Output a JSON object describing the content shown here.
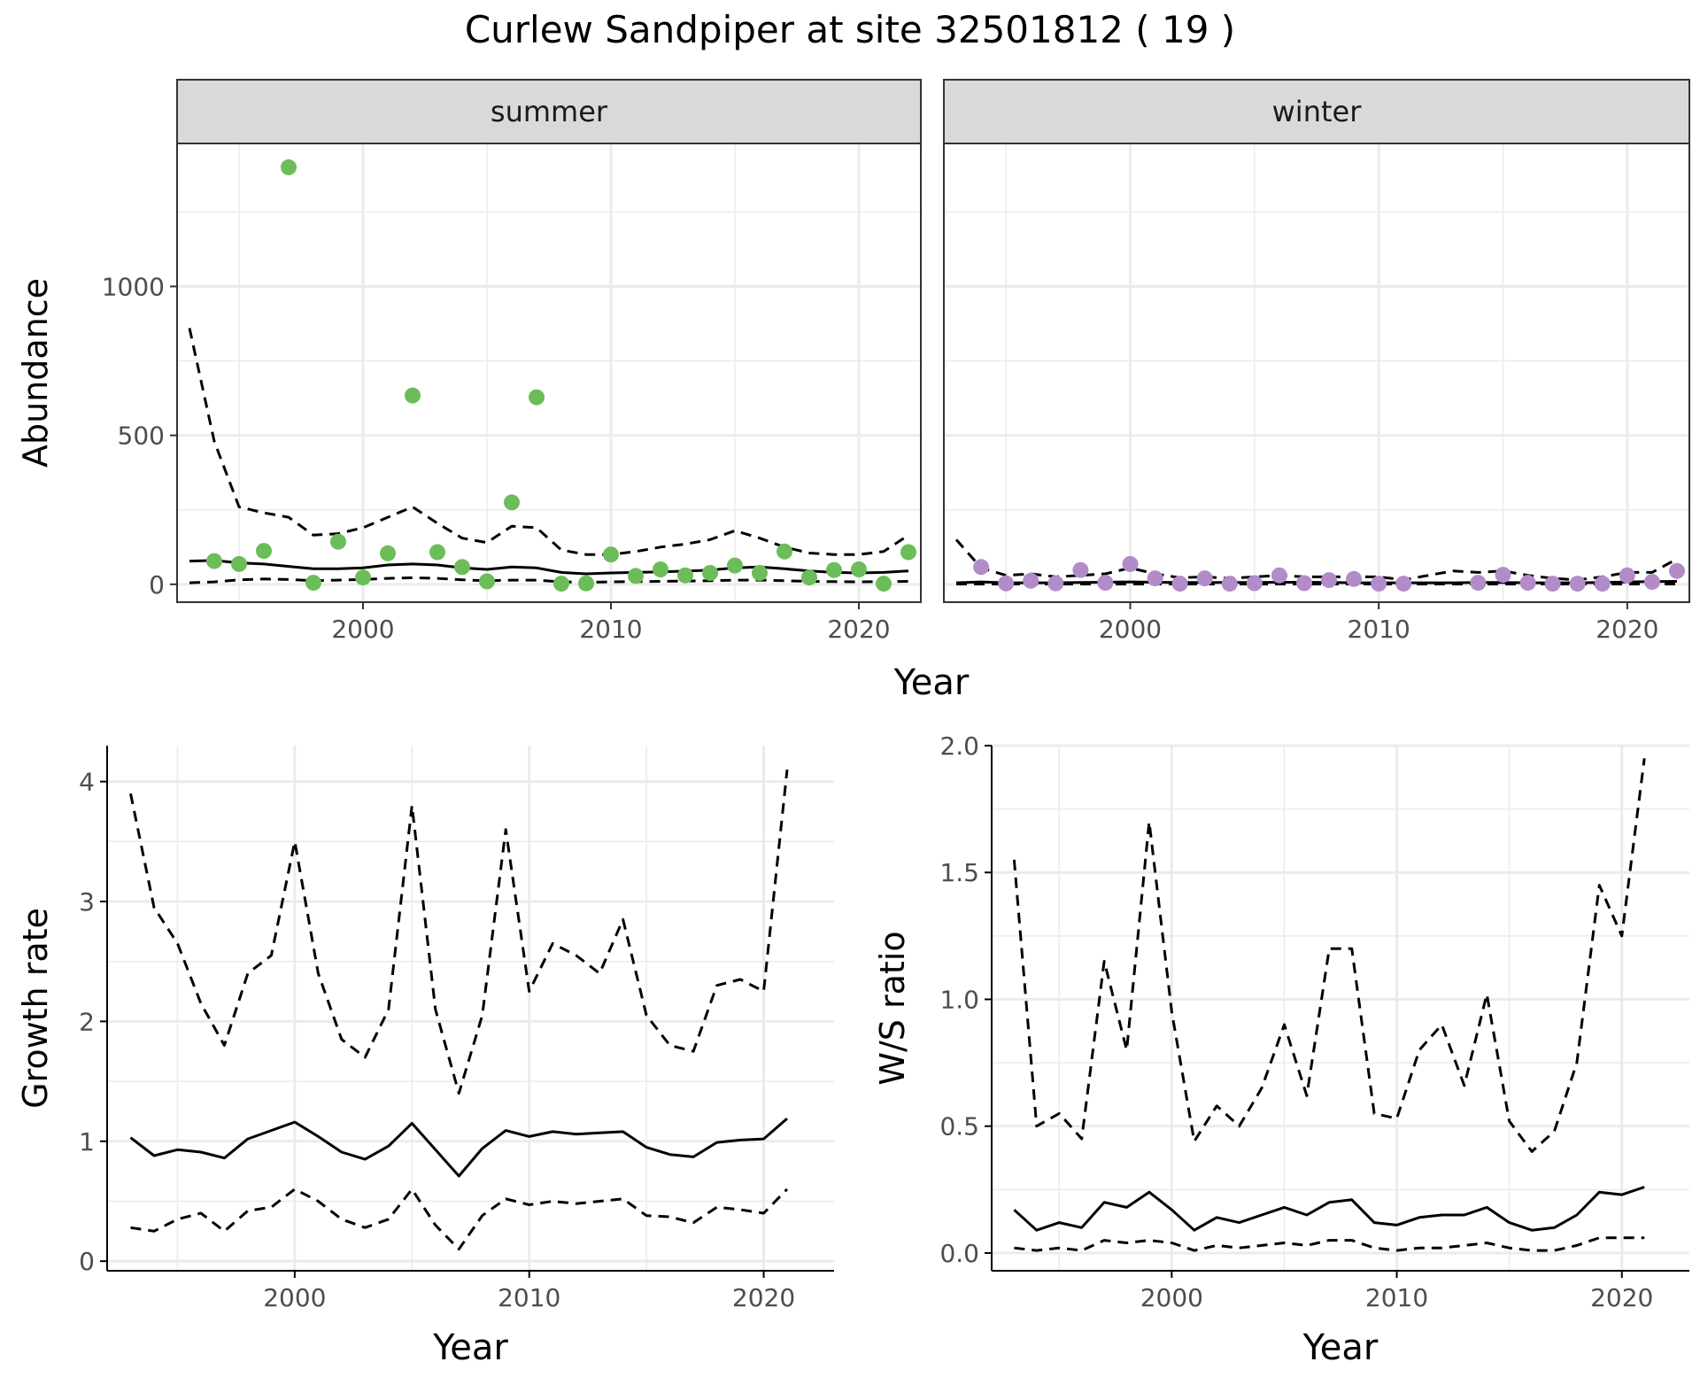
{
  "title": "Curlew Sandpiper at site 32501812 ( 19 )",
  "colors": {
    "summer_points": "#6cbd5a",
    "winter_points": "#b28cc9",
    "lines": "#000000",
    "strip_fill": "#d9d9d9",
    "grid": "#ebebeb"
  },
  "chart_data": [
    {
      "type": "line",
      "panel": "summer",
      "strip_label": "summer",
      "xlabel": "Year",
      "ylabel": "Abundance",
      "xlim": [
        1992.5,
        2022.5
      ],
      "ylim": [
        -60,
        1480
      ],
      "xticks": [
        2000,
        2010,
        2020
      ],
      "yticks": [
        0,
        500,
        1000
      ],
      "x": [
        1993,
        1994,
        1995,
        1996,
        1997,
        1998,
        1999,
        2000,
        2001,
        2002,
        2003,
        2004,
        2005,
        2006,
        2007,
        2008,
        2009,
        2010,
        2011,
        2012,
        2013,
        2014,
        2015,
        2016,
        2017,
        2018,
        2019,
        2020,
        2021,
        2022
      ],
      "series": [
        {
          "name": "fit",
          "style": "solid",
          "values": [
            78,
            80,
            72,
            68,
            60,
            52,
            52,
            55,
            65,
            68,
            65,
            55,
            50,
            58,
            55,
            40,
            35,
            38,
            40,
            42,
            44,
            48,
            55,
            58,
            52,
            45,
            40,
            38,
            40,
            45
          ]
        },
        {
          "name": "upper",
          "style": "dashed",
          "values": [
            860,
            480,
            260,
            240,
            225,
            165,
            170,
            190,
            225,
            260,
            205,
            155,
            140,
            195,
            190,
            115,
            100,
            100,
            110,
            125,
            135,
            150,
            180,
            155,
            125,
            105,
            100,
            100,
            110,
            165
          ]
        },
        {
          "name": "lower",
          "style": "dashed",
          "values": [
            5,
            8,
            15,
            18,
            16,
            12,
            14,
            16,
            20,
            22,
            20,
            15,
            12,
            14,
            14,
            8,
            7,
            8,
            9,
            10,
            11,
            12,
            14,
            14,
            12,
            10,
            9,
            8,
            9,
            10
          ]
        }
      ],
      "points": {
        "name": "observed",
        "x": [
          1994,
          1995,
          1996,
          1997,
          1998,
          1999,
          2000,
          2001,
          2002,
          2003,
          2004,
          2005,
          2006,
          2007,
          2008,
          2009,
          2010,
          2011,
          2012,
          2013,
          2014,
          2015,
          2016,
          2017,
          2018,
          2019,
          2020,
          2021,
          2022
        ],
        "values": [
          78,
          68,
          112,
          1400,
          5,
          143,
          23,
          104,
          634,
          108,
          58,
          10,
          275,
          628,
          2,
          3,
          100,
          28,
          50,
          30,
          38,
          63,
          38,
          110,
          23,
          48,
          50,
          2,
          108
        ]
      }
    },
    {
      "type": "line",
      "panel": "winter",
      "strip_label": "winter",
      "xlabel": "Year",
      "xlim": [
        1992.5,
        2022.5
      ],
      "ylim": [
        -60,
        1480
      ],
      "xticks": [
        2000,
        2010,
        2020
      ],
      "yticks": [
        0,
        500,
        1000
      ],
      "x": [
        1993,
        1994,
        1995,
        1996,
        1997,
        1998,
        1999,
        2000,
        2001,
        2002,
        2003,
        2004,
        2005,
        2006,
        2007,
        2008,
        2009,
        2010,
        2011,
        2012,
        2013,
        2014,
        2015,
        2016,
        2017,
        2018,
        2019,
        2020,
        2021,
        2022
      ],
      "series": [
        {
          "name": "fit",
          "style": "solid",
          "values": [
            5,
            8,
            5,
            5,
            5,
            6,
            7,
            8,
            7,
            6,
            6,
            6,
            6,
            7,
            7,
            6,
            5,
            5,
            5,
            5,
            5,
            6,
            6,
            5,
            5,
            5,
            6,
            8,
            9,
            10
          ]
        },
        {
          "name": "upper",
          "style": "dashed",
          "values": [
            150,
            55,
            30,
            35,
            25,
            30,
            35,
            55,
            35,
            22,
            25,
            20,
            25,
            30,
            25,
            25,
            25,
            25,
            15,
            30,
            45,
            40,
            45,
            30,
            20,
            15,
            25,
            40,
            40,
            85
          ]
        },
        {
          "name": "lower",
          "style": "dashed",
          "values": [
            1,
            1,
            1,
            1,
            1,
            1,
            1,
            1,
            1,
            1,
            1,
            1,
            1,
            1,
            1,
            1,
            1,
            1,
            1,
            1,
            1,
            1,
            1,
            1,
            1,
            1,
            1,
            1,
            1,
            1
          ]
        }
      ],
      "points": {
        "name": "observed",
        "x": [
          1994,
          1995,
          1996,
          1997,
          1998,
          1999,
          2000,
          2001,
          2002,
          2003,
          2004,
          2005,
          2006,
          2007,
          2008,
          2009,
          2010,
          2011,
          2014,
          2015,
          2016,
          2017,
          2018,
          2019,
          2020,
          2021,
          2022
        ],
        "values": [
          58,
          3,
          12,
          3,
          48,
          5,
          68,
          20,
          2,
          20,
          2,
          4,
          30,
          4,
          14,
          18,
          2,
          2,
          5,
          32,
          5,
          2,
          2,
          2,
          30,
          8,
          45
        ]
      }
    },
    {
      "type": "line",
      "panel": "growth",
      "xlabel": "Year",
      "ylabel": "Growth rate",
      "xlim": [
        1992.0,
        2023.0
      ],
      "ylim": [
        -0.08,
        4.3
      ],
      "xticks": [
        2000,
        2010,
        2020
      ],
      "yticks": [
        0,
        1,
        2,
        3,
        4
      ],
      "x": [
        1993,
        1994,
        1995,
        1996,
        1997,
        1998,
        1999,
        2000,
        2001,
        2002,
        2003,
        2004,
        2005,
        2006,
        2007,
        2008,
        2009,
        2010,
        2011,
        2012,
        2013,
        2014,
        2015,
        2016,
        2017,
        2018,
        2019,
        2020,
        2021
      ],
      "series": [
        {
          "name": "fit",
          "style": "solid",
          "values": [
            1.03,
            0.88,
            0.93,
            0.91,
            0.86,
            1.02,
            1.09,
            1.16,
            1.04,
            0.91,
            0.85,
            0.96,
            1.15,
            0.93,
            0.71,
            0.94,
            1.09,
            1.04,
            1.08,
            1.06,
            1.07,
            1.08,
            0.95,
            0.89,
            0.87,
            0.99,
            1.01,
            1.02,
            1.19
          ]
        },
        {
          "name": "upper",
          "style": "dashed",
          "values": [
            3.9,
            2.95,
            2.65,
            2.15,
            1.8,
            2.4,
            2.55,
            3.5,
            2.4,
            1.85,
            1.7,
            2.1,
            3.8,
            2.1,
            1.4,
            2.05,
            3.6,
            2.25,
            2.65,
            2.55,
            2.4,
            2.85,
            2.05,
            1.8,
            1.75,
            2.3,
            2.35,
            2.25,
            4.1
          ]
        },
        {
          "name": "lower",
          "style": "dashed",
          "values": [
            0.28,
            0.25,
            0.35,
            0.4,
            0.25,
            0.42,
            0.45,
            0.6,
            0.5,
            0.35,
            0.28,
            0.35,
            0.6,
            0.3,
            0.1,
            0.38,
            0.52,
            0.47,
            0.5,
            0.48,
            0.5,
            0.52,
            0.38,
            0.37,
            0.32,
            0.45,
            0.43,
            0.4,
            0.6
          ]
        }
      ]
    },
    {
      "type": "line",
      "panel": "ratio",
      "xlabel": "Year",
      "ylabel": "W/S ratio",
      "xlim": [
        1992.0,
        2023.0
      ],
      "ylim": [
        -0.07,
        2.0
      ],
      "xticks": [
        2000,
        2010,
        2020
      ],
      "yticks": [
        0.0,
        0.5,
        1.0,
        1.5,
        2.0
      ],
      "ytick_labels": [
        "0.0",
        "0.5",
        "1.0",
        "1.5",
        "2.0"
      ],
      "x": [
        1993,
        1994,
        1995,
        1996,
        1997,
        1998,
        1999,
        2000,
        2001,
        2002,
        2003,
        2004,
        2005,
        2006,
        2007,
        2008,
        2009,
        2010,
        2011,
        2012,
        2013,
        2014,
        2015,
        2016,
        2017,
        2018,
        2019,
        2020,
        2021
      ],
      "series": [
        {
          "name": "fit",
          "style": "solid",
          "values": [
            0.17,
            0.09,
            0.12,
            0.1,
            0.2,
            0.18,
            0.24,
            0.17,
            0.09,
            0.14,
            0.12,
            0.15,
            0.18,
            0.15,
            0.2,
            0.21,
            0.12,
            0.11,
            0.14,
            0.15,
            0.15,
            0.18,
            0.12,
            0.09,
            0.1,
            0.15,
            0.24,
            0.23,
            0.26
          ]
        },
        {
          "name": "upper",
          "style": "dashed",
          "values": [
            1.55,
            0.5,
            0.55,
            0.45,
            1.15,
            0.8,
            1.7,
            0.95,
            0.44,
            0.58,
            0.5,
            0.65,
            0.9,
            0.62,
            1.2,
            1.2,
            0.55,
            0.53,
            0.8,
            0.9,
            0.66,
            1.02,
            0.52,
            0.4,
            0.48,
            0.75,
            1.45,
            1.25,
            1.95
          ]
        },
        {
          "name": "lower",
          "style": "dashed",
          "values": [
            0.02,
            0.01,
            0.02,
            0.01,
            0.05,
            0.04,
            0.05,
            0.04,
            0.01,
            0.03,
            0.02,
            0.03,
            0.04,
            0.03,
            0.05,
            0.05,
            0.02,
            0.01,
            0.02,
            0.02,
            0.03,
            0.04,
            0.02,
            0.01,
            0.01,
            0.03,
            0.06,
            0.06,
            0.06
          ]
        }
      ]
    }
  ]
}
